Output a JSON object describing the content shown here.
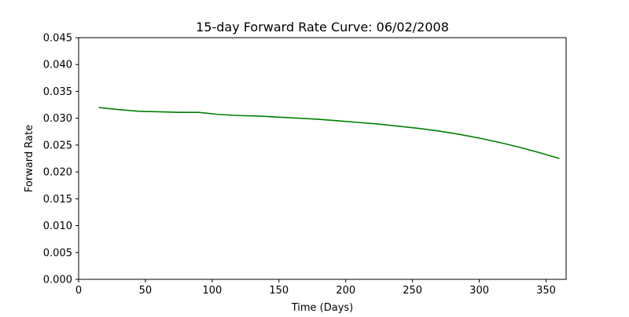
{
  "chart_data": {
    "type": "line",
    "title": "15-day Forward Rate Curve: 06/02/2008",
    "xlabel": "Time (Days)",
    "ylabel": "Forward Rate",
    "xlim": [
      0,
      365
    ],
    "ylim": [
      0,
      0.045
    ],
    "x_ticks": [
      0,
      50,
      100,
      150,
      200,
      250,
      300,
      350
    ],
    "x_tick_labels": [
      "0",
      "50",
      "100",
      "150",
      "200",
      "250",
      "300",
      "350"
    ],
    "y_ticks": [
      0,
      0.005,
      0.01,
      0.015,
      0.02,
      0.025,
      0.03,
      0.035,
      0.04,
      0.045
    ],
    "y_tick_labels": [
      "0.000",
      "0.005",
      "0.010",
      "0.015",
      "0.020",
      "0.025",
      "0.030",
      "0.035",
      "0.040",
      "0.045"
    ],
    "grid": false,
    "series": [
      {
        "color": "#008000",
        "x": [
          15,
          30,
          45,
          60,
          75,
          90,
          105,
          120,
          135,
          150,
          165,
          180,
          195,
          210,
          225,
          240,
          255,
          270,
          285,
          300,
          315,
          330,
          345,
          360
        ],
        "y": [
          0.032,
          0.0316,
          0.0313,
          0.0312,
          0.0311,
          0.0311,
          0.0307,
          0.0305,
          0.0304,
          0.0302,
          0.03,
          0.0298,
          0.0295,
          0.0292,
          0.0289,
          0.0285,
          0.0281,
          0.0276,
          0.027,
          0.0263,
          0.0255,
          0.0246,
          0.0236,
          0.0225
        ]
      }
    ]
  }
}
